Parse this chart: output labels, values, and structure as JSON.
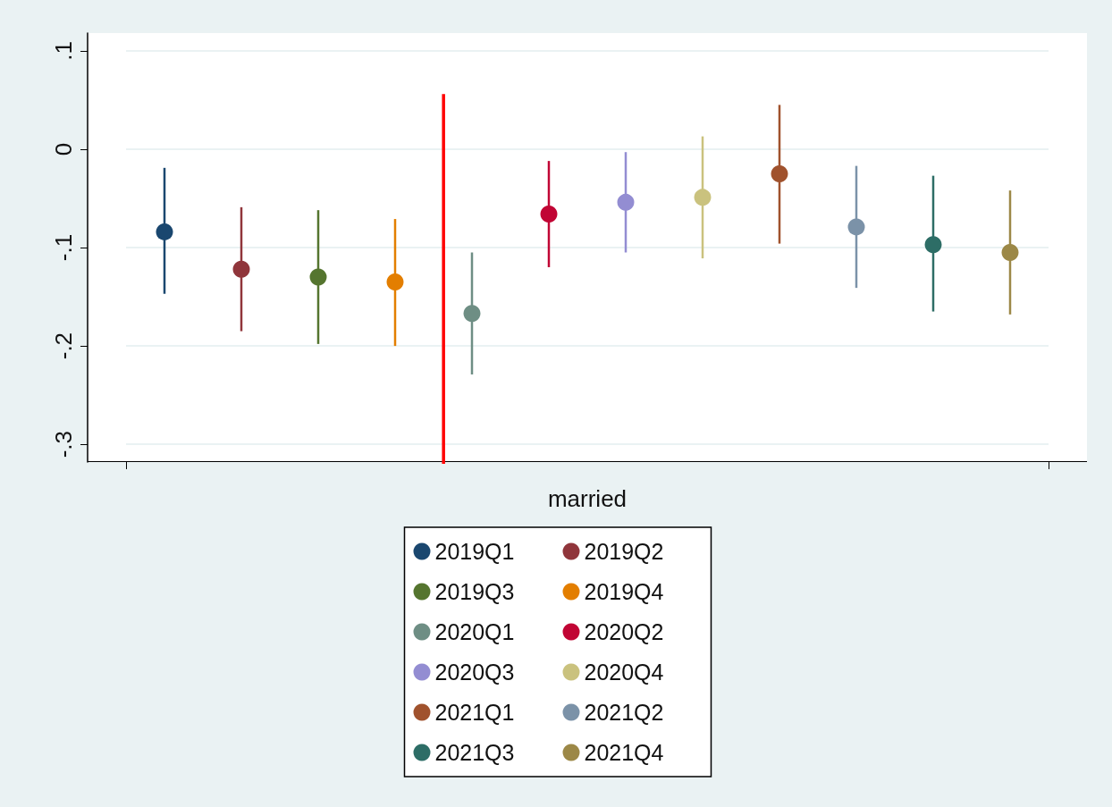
{
  "chart_data": {
    "type": "scatter",
    "marker": "circle",
    "grid": "y",
    "legend": "bottom",
    "xlabel": "married",
    "categories": [
      null,
      null,
      null,
      null,
      null,
      null,
      null,
      null,
      null,
      null,
      null,
      null
    ],
    "ylim": [
      -0.318,
      0.118
    ],
    "yticks": [
      {
        "value": -0.3,
        "label": "-.3"
      },
      {
        "value": -0.2,
        "label": "-.2"
      },
      {
        "value": -0.1,
        "label": "-.1"
      },
      {
        "value": 0,
        "label": "0"
      },
      {
        "value": 0.1,
        "label": ".1"
      }
    ],
    "series": [
      {
        "name": "2019Q1",
        "color": "#1a476f",
        "values": [
          -0.084,
          null,
          null,
          null,
          null,
          null,
          null,
          null,
          null,
          null,
          null,
          null
        ],
        "errors": [
          [
            -0.147,
            -0.019
          ],
          null,
          null,
          null,
          null,
          null,
          null,
          null,
          null,
          null,
          null,
          null
        ]
      },
      {
        "name": "2019Q2",
        "color": "#90353b",
        "values": [
          null,
          -0.122,
          null,
          null,
          null,
          null,
          null,
          null,
          null,
          null,
          null,
          null
        ],
        "errors": [
          null,
          [
            -0.185,
            -0.059
          ],
          null,
          null,
          null,
          null,
          null,
          null,
          null,
          null,
          null,
          null
        ]
      },
      {
        "name": "2019Q3",
        "color": "#55752f",
        "values": [
          null,
          null,
          -0.13,
          null,
          null,
          null,
          null,
          null,
          null,
          null,
          null,
          null
        ],
        "errors": [
          null,
          null,
          [
            -0.198,
            -0.062
          ],
          null,
          null,
          null,
          null,
          null,
          null,
          null,
          null,
          null
        ]
      },
      {
        "name": "2019Q4",
        "color": "#e37e00",
        "values": [
          null,
          null,
          null,
          -0.135,
          null,
          null,
          null,
          null,
          null,
          null,
          null,
          null
        ],
        "errors": [
          null,
          null,
          null,
          [
            -0.2,
            -0.071
          ],
          null,
          null,
          null,
          null,
          null,
          null,
          null,
          null
        ]
      },
      {
        "name": "2020Q1",
        "color": "#6e8e84",
        "values": [
          null,
          null,
          null,
          null,
          -0.167,
          null,
          null,
          null,
          null,
          null,
          null,
          null
        ],
        "errors": [
          null,
          null,
          null,
          null,
          [
            -0.229,
            -0.105
          ],
          null,
          null,
          null,
          null,
          null,
          null,
          null
        ]
      },
      {
        "name": "2020Q2",
        "color": "#c10534",
        "values": [
          null,
          null,
          null,
          null,
          null,
          -0.066,
          null,
          null,
          null,
          null,
          null,
          null
        ],
        "errors": [
          null,
          null,
          null,
          null,
          null,
          [
            -0.12,
            -0.012
          ],
          null,
          null,
          null,
          null,
          null,
          null
        ]
      },
      {
        "name": "2020Q3",
        "color": "#938dd2",
        "values": [
          null,
          null,
          null,
          null,
          null,
          null,
          -0.054,
          null,
          null,
          null,
          null,
          null
        ],
        "errors": [
          null,
          null,
          null,
          null,
          null,
          null,
          [
            -0.105,
            -0.003
          ],
          null,
          null,
          null,
          null,
          null
        ]
      },
      {
        "name": "2020Q4",
        "color": "#cac27e",
        "values": [
          null,
          null,
          null,
          null,
          null,
          null,
          null,
          -0.049,
          null,
          null,
          null,
          null
        ],
        "errors": [
          null,
          null,
          null,
          null,
          null,
          null,
          null,
          [
            -0.111,
            0.013
          ],
          null,
          null,
          null,
          null
        ]
      },
      {
        "name": "2021Q1",
        "color": "#a0522d",
        "values": [
          null,
          null,
          null,
          null,
          null,
          null,
          null,
          null,
          -0.025,
          null,
          null,
          null
        ],
        "errors": [
          null,
          null,
          null,
          null,
          null,
          null,
          null,
          null,
          [
            -0.096,
            0.045
          ],
          null,
          null,
          null
        ]
      },
      {
        "name": "2021Q2",
        "color": "#7b92a8",
        "values": [
          null,
          null,
          null,
          null,
          null,
          null,
          null,
          null,
          null,
          -0.079,
          null,
          null
        ],
        "errors": [
          null,
          null,
          null,
          null,
          null,
          null,
          null,
          null,
          null,
          [
            -0.141,
            -0.017
          ],
          null,
          null
        ]
      },
      {
        "name": "2021Q3",
        "color": "#2d6d66",
        "values": [
          null,
          null,
          null,
          null,
          null,
          null,
          null,
          null,
          null,
          null,
          -0.097,
          null
        ],
        "errors": [
          null,
          null,
          null,
          null,
          null,
          null,
          null,
          null,
          null,
          null,
          [
            -0.165,
            -0.027
          ],
          null
        ]
      },
      {
        "name": "2021Q4",
        "color": "#9c8847",
        "values": [
          null,
          null,
          null,
          null,
          null,
          null,
          null,
          null,
          null,
          null,
          null,
          -0.105
        ],
        "errors": [
          null,
          null,
          null,
          null,
          null,
          null,
          null,
          null,
          null,
          null,
          null,
          [
            -0.168,
            -0.042
          ]
        ]
      }
    ]
  }
}
